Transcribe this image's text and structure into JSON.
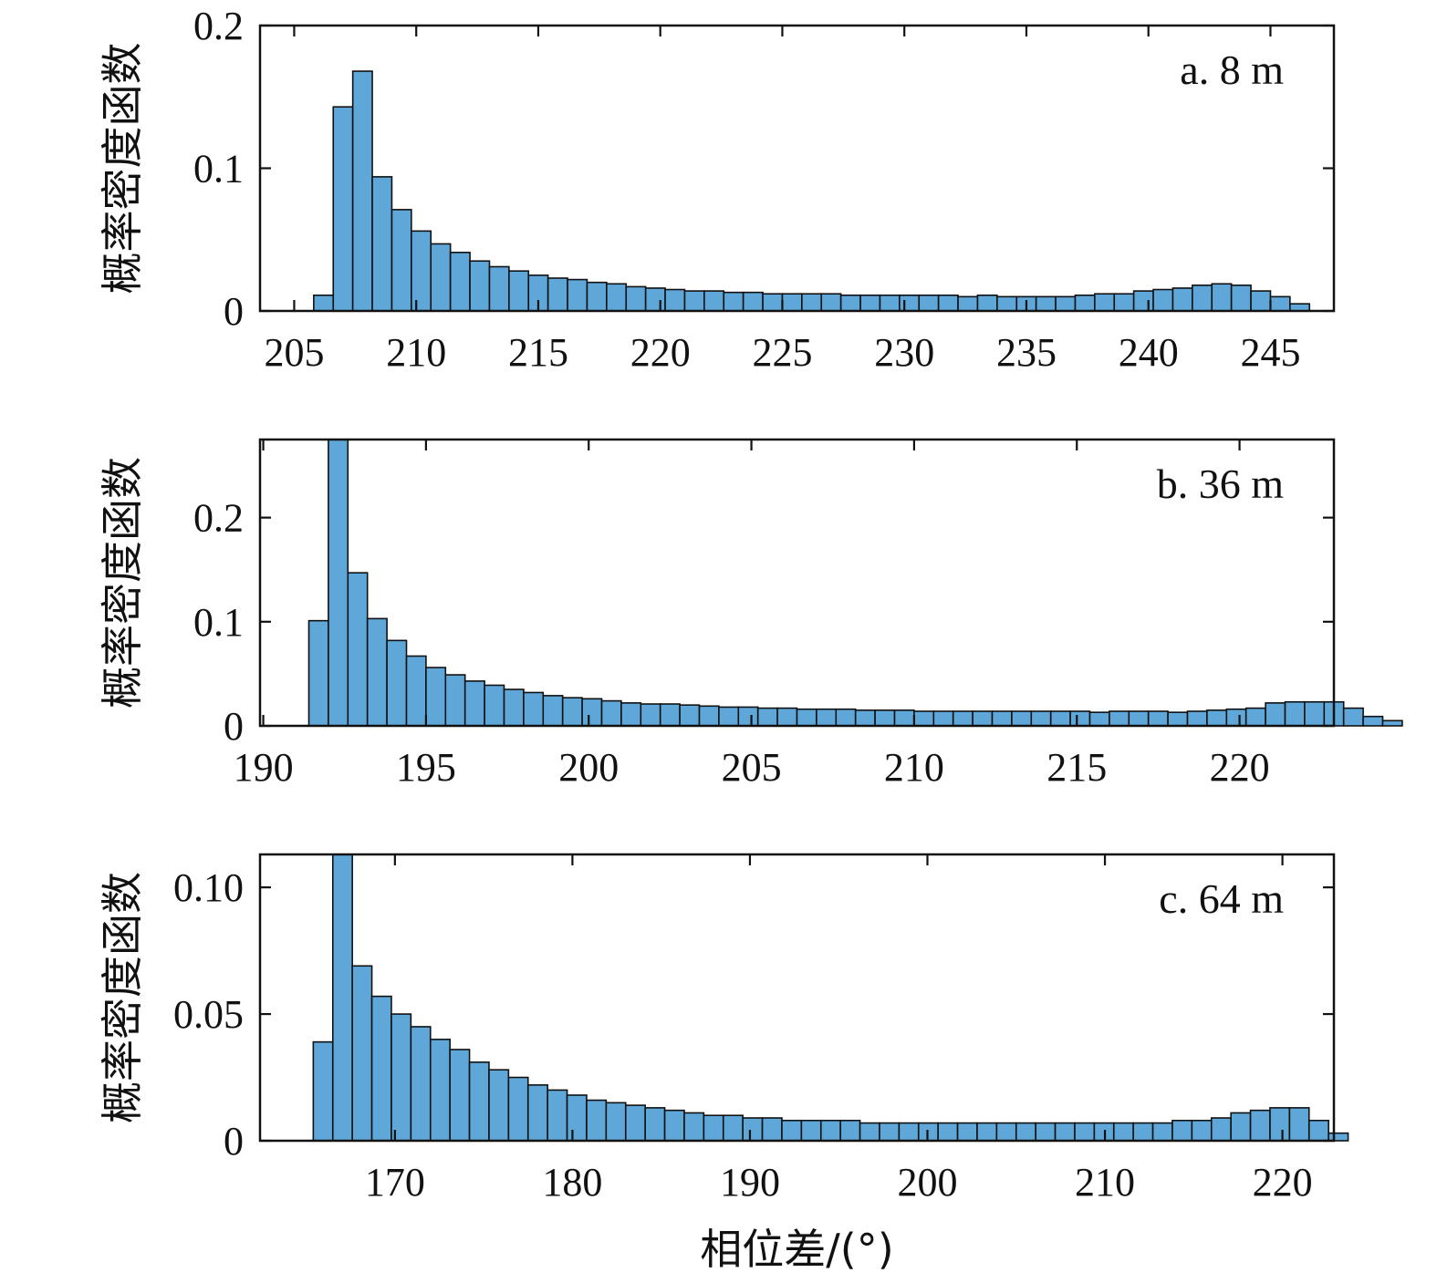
{
  "chart_data": [
    {
      "type": "bar",
      "panel_label": "a. 8 m",
      "ylabel": "概率密度函数",
      "xlabel": "",
      "xlim": [
        203.6,
        247.6
      ],
      "ylim": [
        0,
        0.2
      ],
      "xticks": [
        205,
        210,
        215,
        220,
        225,
        230,
        235,
        240,
        245
      ],
      "yticks": [
        0,
        0.1,
        0.2
      ],
      "ytick_labels": [
        "0",
        "0.1",
        "0.2"
      ],
      "bin_start": 205.8,
      "bin_width": 0.8,
      "values": [
        0.011,
        0.143,
        0.168,
        0.094,
        0.071,
        0.056,
        0.047,
        0.041,
        0.035,
        0.031,
        0.028,
        0.025,
        0.023,
        0.022,
        0.02,
        0.019,
        0.017,
        0.016,
        0.015,
        0.014,
        0.014,
        0.013,
        0.013,
        0.012,
        0.012,
        0.012,
        0.012,
        0.011,
        0.011,
        0.011,
        0.011,
        0.011,
        0.011,
        0.01,
        0.011,
        0.01,
        0.01,
        0.01,
        0.01,
        0.011,
        0.012,
        0.012,
        0.014,
        0.015,
        0.016,
        0.018,
        0.019,
        0.018,
        0.014,
        0.01,
        0.005
      ]
    },
    {
      "type": "bar",
      "panel_label": "b. 36 m",
      "ylabel": "概率密度函数",
      "xlabel": "",
      "xlim": [
        189.9,
        222.9
      ],
      "ylim": [
        0,
        0.275
      ],
      "xticks": [
        190,
        195,
        200,
        205,
        210,
        215,
        220
      ],
      "yticks": [
        0,
        0.1,
        0.2
      ],
      "ytick_labels": [
        "0",
        "0.1",
        "0.2"
      ],
      "bin_start": 191.4,
      "bin_width": 0.6,
      "values": [
        0.101,
        0.275,
        0.147,
        0.103,
        0.082,
        0.067,
        0.056,
        0.049,
        0.043,
        0.039,
        0.035,
        0.032,
        0.029,
        0.027,
        0.026,
        0.024,
        0.022,
        0.021,
        0.021,
        0.02,
        0.019,
        0.018,
        0.018,
        0.017,
        0.017,
        0.016,
        0.016,
        0.016,
        0.015,
        0.015,
        0.015,
        0.014,
        0.014,
        0.014,
        0.014,
        0.014,
        0.014,
        0.014,
        0.014,
        0.014,
        0.013,
        0.014,
        0.014,
        0.014,
        0.013,
        0.014,
        0.015,
        0.016,
        0.017,
        0.022,
        0.023,
        0.023,
        0.023,
        0.017,
        0.009,
        0.005
      ]
    },
    {
      "type": "bar",
      "panel_label": "c. 64 m",
      "ylabel": "概率密度函数",
      "xlabel": "相位差/(°)",
      "xlim": [
        162.4,
        222.9
      ],
      "ylim": [
        0,
        0.113
      ],
      "xticks": [
        170,
        180,
        190,
        200,
        210,
        220
      ],
      "yticks": [
        0,
        0.05,
        0.1
      ],
      "ytick_labels": [
        "0",
        "0.05",
        "0.10"
      ],
      "bin_start": 165.4,
      "bin_width": 1.1,
      "values": [
        0.039,
        0.113,
        0.069,
        0.057,
        0.05,
        0.045,
        0.04,
        0.036,
        0.031,
        0.028,
        0.025,
        0.022,
        0.02,
        0.018,
        0.016,
        0.015,
        0.014,
        0.013,
        0.012,
        0.011,
        0.01,
        0.01,
        0.009,
        0.009,
        0.008,
        0.008,
        0.008,
        0.008,
        0.007,
        0.007,
        0.007,
        0.007,
        0.007,
        0.007,
        0.007,
        0.007,
        0.007,
        0.007,
        0.007,
        0.007,
        0.007,
        0.007,
        0.007,
        0.007,
        0.008,
        0.008,
        0.009,
        0.011,
        0.012,
        0.013,
        0.013,
        0.008,
        0.003
      ]
    }
  ],
  "colors": {
    "bar_fill": "#5fa7d9",
    "bar_edge": "#111111",
    "axis": "#111111"
  }
}
